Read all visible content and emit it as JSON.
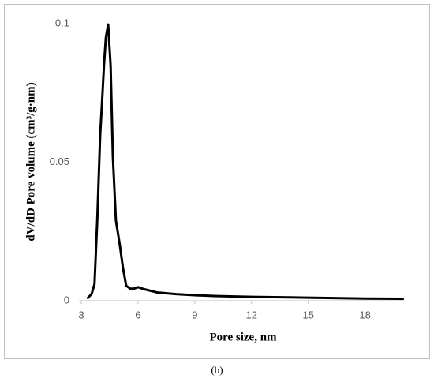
{
  "chart_data": {
    "type": "line",
    "x_label": "Pore size, nm",
    "y_label": "dV/dD Pore volume (cm³/g·nm)",
    "caption": "(b)",
    "xlim": [
      2.875,
      20.1
    ],
    "xticks": [
      3,
      6,
      9,
      12,
      15,
      18
    ],
    "ylim": [
      0,
      0.1
    ],
    "yticks": [
      0,
      0.05,
      0.1
    ],
    "grid": false,
    "series": [
      {
        "color": "#000000",
        "x": [
          3.35,
          3.55,
          3.7,
          3.85,
          4.0,
          4.1,
          4.2,
          4.3,
          4.42,
          4.55,
          4.67,
          4.83,
          5.04,
          5.2,
          5.375,
          5.6,
          5.8,
          6.0,
          6.3,
          7.0,
          8.0,
          9.0,
          10.0,
          12.0,
          14.0,
          16.0,
          18.0,
          20.0
        ],
        "values": [
          0.001,
          0.0025,
          0.006,
          0.03,
          0.06,
          0.072,
          0.085,
          0.095,
          0.0997,
          0.085,
          0.052,
          0.029,
          0.02,
          0.012,
          0.0054,
          0.0043,
          0.0044,
          0.0049,
          0.0042,
          0.003,
          0.0024,
          0.002,
          0.0017,
          0.0014,
          0.0012,
          0.001,
          0.0008,
          0.0007
        ]
      }
    ]
  }
}
